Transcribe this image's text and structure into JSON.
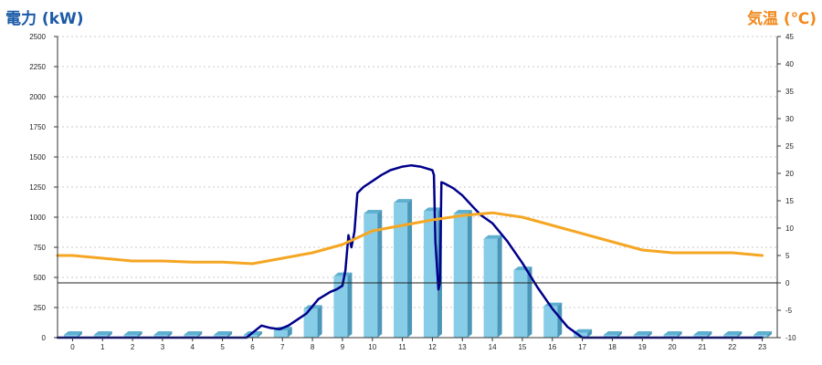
{
  "titles": {
    "left_axis": "電力 (kW)",
    "right_axis": "気温 (℃)"
  },
  "chart_data": {
    "type": "bar",
    "title": "",
    "categories": [
      "0",
      "1",
      "2",
      "3",
      "4",
      "5",
      "6",
      "7",
      "8",
      "9",
      "10",
      "11",
      "12",
      "13",
      "14",
      "15",
      "16",
      "17",
      "18",
      "19",
      "20",
      "21",
      "22",
      "23"
    ],
    "left_axis": {
      "label": "電力 (kW)",
      "ylim": [
        0,
        2500
      ],
      "ticks": [
        0,
        250,
        500,
        750,
        1000,
        1250,
        1500,
        1750,
        2000,
        2250,
        2500
      ]
    },
    "right_axis": {
      "label": "気温 (℃)",
      "ylim": [
        -10,
        45
      ],
      "ticks": [
        -10,
        -5,
        0,
        5,
        10,
        15,
        20,
        25,
        30,
        35,
        40,
        45
      ]
    },
    "grid": true,
    "zero_line_temperature": 0,
    "series": [
      {
        "kind": "bar",
        "axis": "left",
        "color": "#87cde8",
        "values": [
          5,
          5,
          5,
          5,
          5,
          5,
          20,
          60,
          240,
          510,
          1030,
          1120,
          1050,
          1030,
          820,
          560,
          260,
          40,
          5,
          5,
          5,
          5,
          5,
          5
        ]
      },
      {
        "kind": "line",
        "axis": "left",
        "color": "#00008b",
        "x": [
          -0.5,
          0,
          1,
          2,
          3,
          4,
          5,
          5.8,
          6.0,
          6.3,
          6.6,
          6.9,
          7.2,
          7.5,
          7.8,
          8.0,
          8.2,
          8.4,
          8.6,
          8.8,
          9.0,
          9.1,
          9.2,
          9.25,
          9.3,
          9.4,
          9.5,
          9.7,
          10.0,
          10.3,
          10.6,
          11.0,
          11.3,
          11.6,
          12.0,
          12.05,
          12.1,
          12.2,
          12.25,
          12.3,
          12.4,
          12.7,
          13.0,
          13.3,
          13.6,
          14.0,
          14.5,
          15.0,
          15.5,
          16.0,
          16.5,
          17.0,
          17.5,
          18,
          19,
          20,
          21,
          22,
          23
        ],
        "values": [
          0,
          0,
          0,
          0,
          0,
          0,
          0,
          0,
          40,
          100,
          80,
          70,
          100,
          150,
          200,
          260,
          320,
          350,
          380,
          400,
          430,
          560,
          850,
          800,
          750,
          880,
          1200,
          1250,
          1300,
          1350,
          1390,
          1420,
          1430,
          1420,
          1390,
          1350,
          800,
          400,
          450,
          1290,
          1280,
          1240,
          1180,
          1100,
          1020,
          950,
          800,
          620,
          420,
          240,
          90,
          0,
          0,
          0,
          0,
          0,
          0,
          0,
          0
        ]
      },
      {
        "kind": "line",
        "axis": "right",
        "color": "#f5a623",
        "x": [
          -0.5,
          0,
          1,
          2,
          3,
          4,
          5,
          6,
          7,
          8,
          9,
          10,
          11,
          12,
          13,
          14,
          15,
          16,
          17,
          18,
          19,
          20,
          21,
          22,
          23
        ],
        "values": [
          5,
          5,
          4.5,
          4,
          4,
          3.8,
          3.8,
          3.5,
          4.5,
          5.5,
          7,
          9.5,
          10.5,
          11.5,
          12.3,
          12.8,
          12,
          10.5,
          9,
          7.5,
          6,
          5.5,
          5.5,
          5.5,
          5
        ]
      }
    ]
  }
}
